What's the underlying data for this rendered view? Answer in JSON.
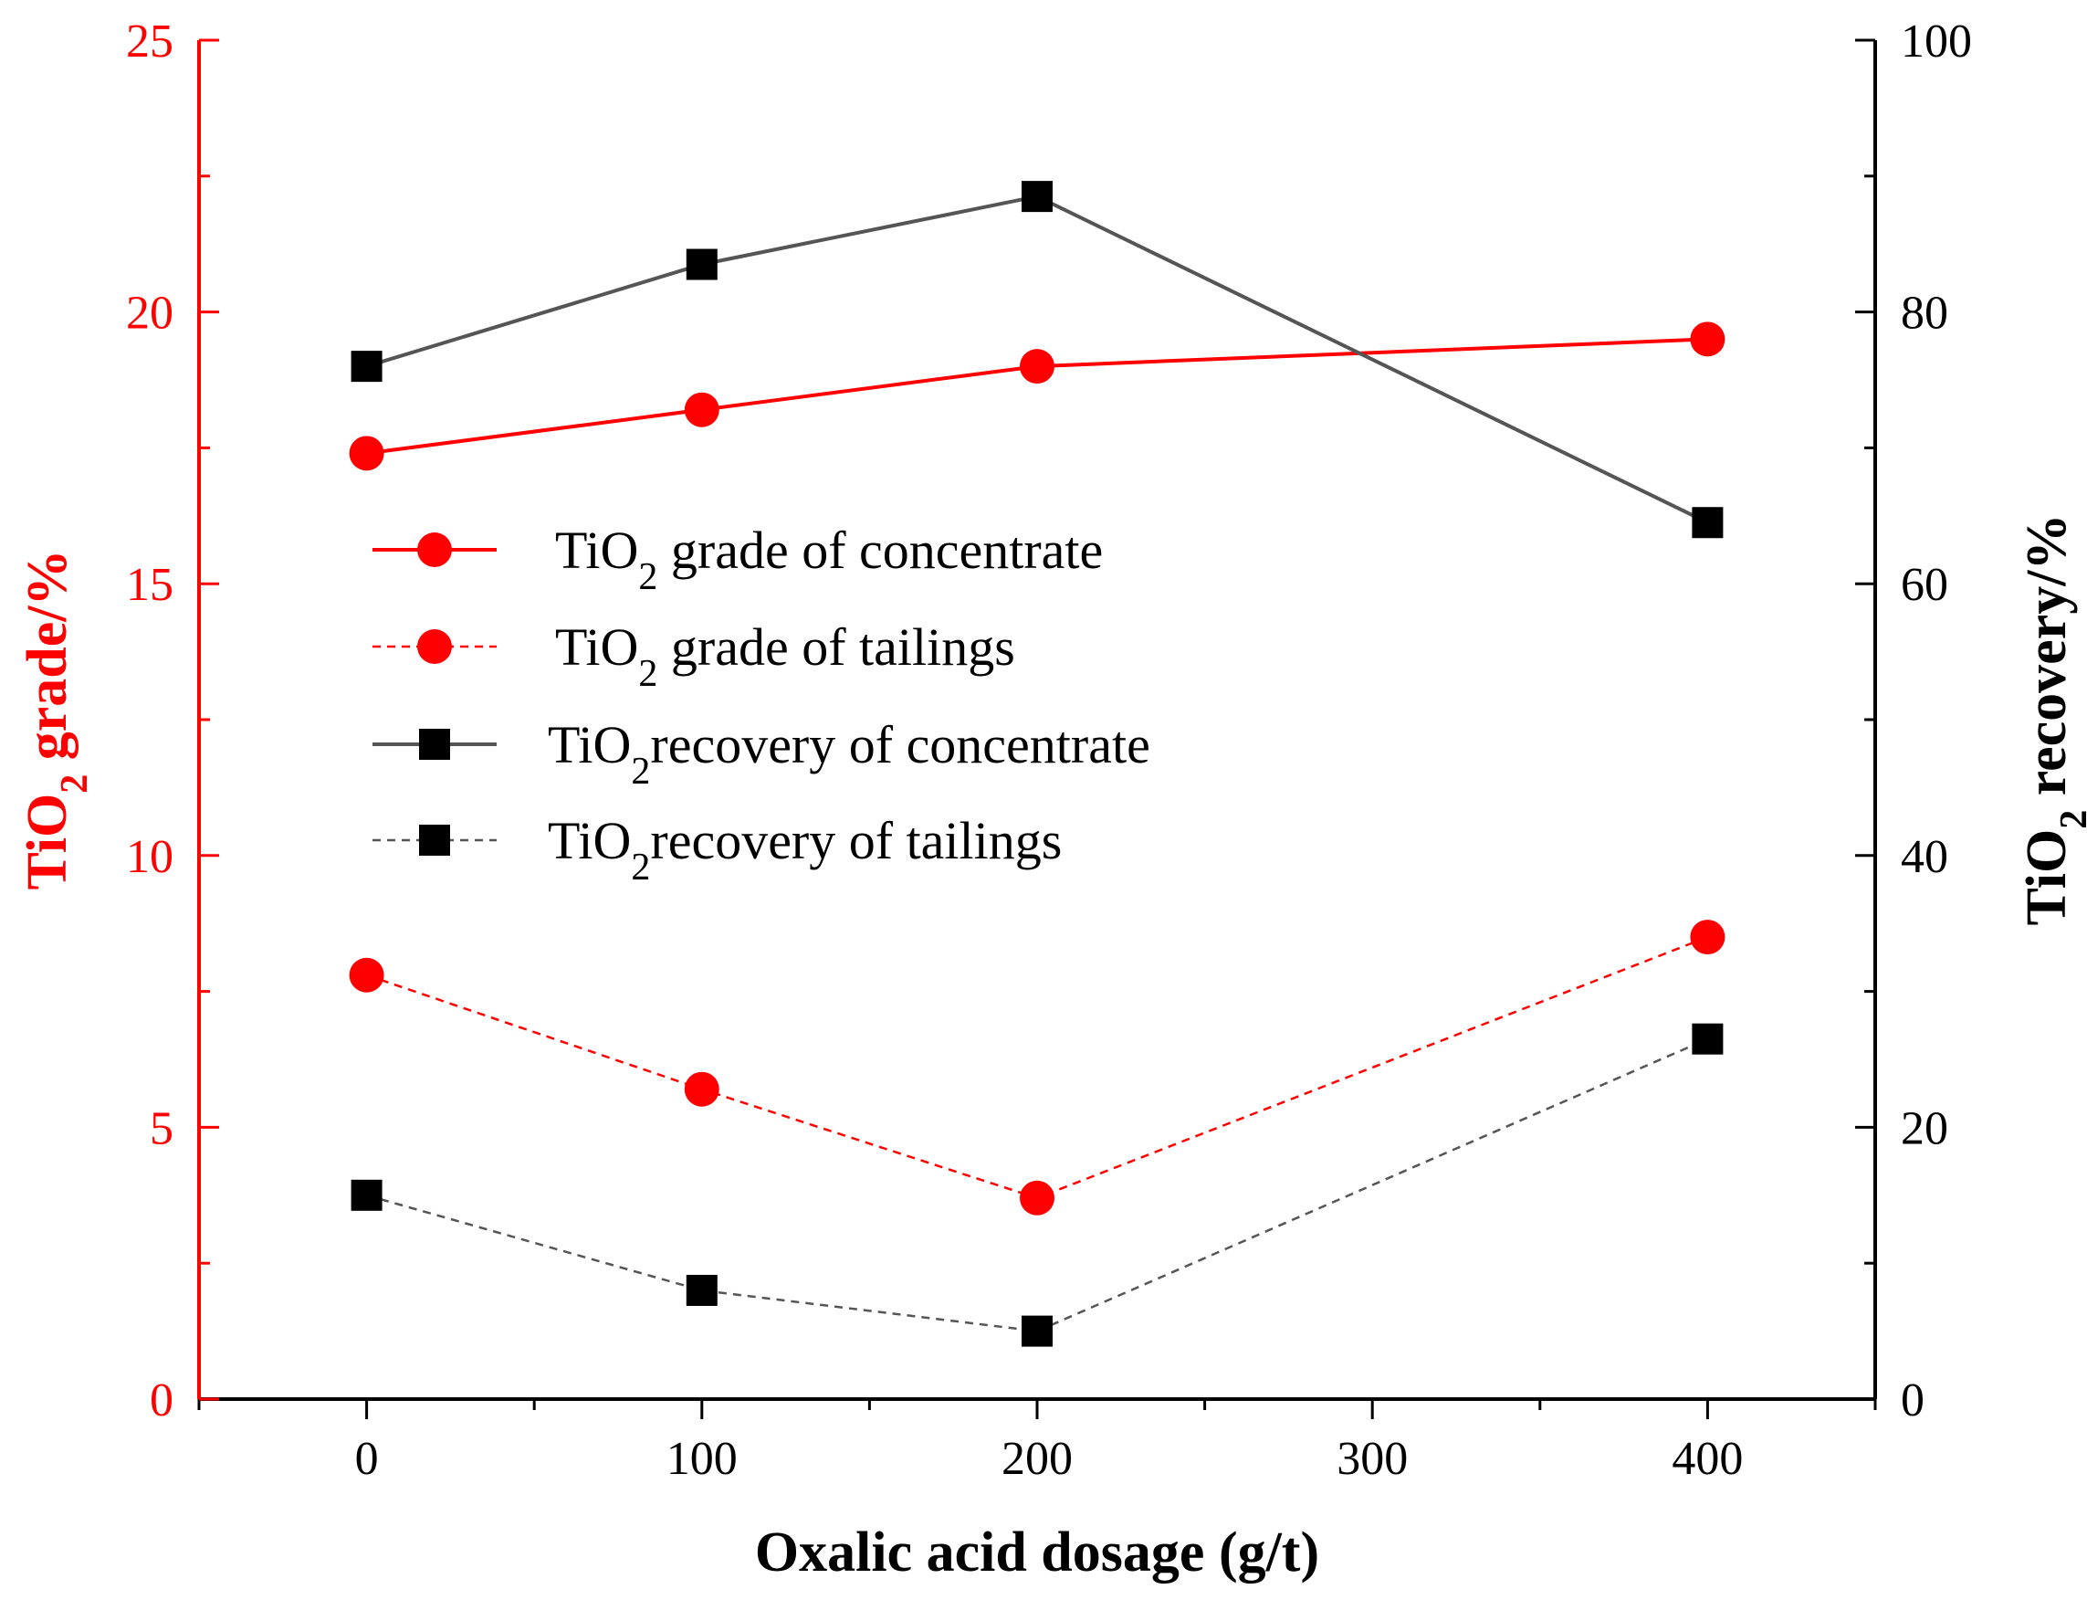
{
  "chart_data": {
    "type": "line",
    "x": [
      0,
      100,
      200,
      400
    ],
    "xlim": [
      -50,
      450
    ],
    "x_ticks": [
      0,
      100,
      200,
      300,
      400
    ],
    "x_minor_ticks": [
      -50,
      50,
      150,
      250,
      350,
      450
    ],
    "xlabel": "Oxalic acid dosage (g/t)",
    "y_left": {
      "lim": [
        0,
        25
      ],
      "ticks": [
        0,
        5,
        10,
        15,
        20,
        25
      ],
      "label_prefix": "TiO",
      "label_sub": "2",
      "label_suffix": " grade/%",
      "color": "#ff0000"
    },
    "y_right": {
      "lim": [
        0,
        100
      ],
      "ticks": [
        0,
        20,
        40,
        60,
        80,
        100
      ],
      "label_prefix": "TiO",
      "label_sub": "2",
      "label_suffix": " recovery/%",
      "color": "#000000"
    },
    "series": [
      {
        "name": "TiO2 grade of concentrate",
        "legend_prefix": "TiO",
        "legend_sub": "2",
        "legend_suffix": " grade of concentrate",
        "axis": "left",
        "values": [
          17.4,
          18.2,
          19.0,
          19.5
        ],
        "line_color": "#ff0000",
        "marker_color": "#ff0000",
        "marker": "circle",
        "dashed": false
      },
      {
        "name": "TiO2 grade of tailings",
        "legend_prefix": "TiO",
        "legend_sub": "2",
        "legend_suffix": " grade of tailings",
        "axis": "left",
        "values": [
          7.8,
          5.7,
          3.7,
          8.5
        ],
        "line_color": "#ff0000",
        "marker_color": "#ff0000",
        "marker": "circle",
        "dashed": true
      },
      {
        "name": "TiO2 recovery of concentrate",
        "legend_prefix": "TiO",
        "legend_sub": "2",
        "legend_suffix": "recovery of concentrate",
        "axis": "right",
        "values": [
          76.0,
          83.5,
          88.5,
          64.5
        ],
        "line_color": "#555555",
        "marker_color": "#000000",
        "marker": "square",
        "dashed": false
      },
      {
        "name": "TiO2 recovery of tailings",
        "legend_prefix": "TiO",
        "legend_sub": "2",
        "legend_suffix": "recovery of tailings",
        "axis": "right",
        "values": [
          15.0,
          8.0,
          5.0,
          26.5
        ],
        "line_color": "#555555",
        "marker_color": "#000000",
        "marker": "square",
        "dashed": true
      }
    ],
    "legend_position": "center-left"
  }
}
